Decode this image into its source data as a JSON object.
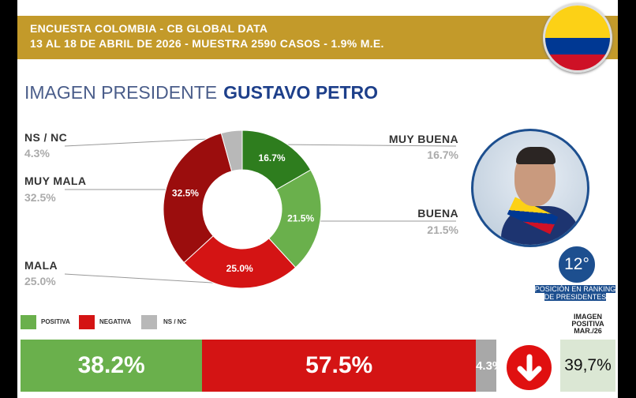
{
  "header": {
    "line1": "ENCUESTA COLOMBIA - CB GLOBAL DATA",
    "line2": "13 AL 18 DE ABRIL DE 2026 - MUESTRA 2590 CASOS - 1.9% M.E."
  },
  "title": {
    "prefix": "IMAGEN PRESIDENTE",
    "name": "GUSTAVO PETRO"
  },
  "chart_data": {
    "type": "pie",
    "donut": true,
    "slices": [
      {
        "label": "MUY BUENA",
        "value": 16.7,
        "value_label": "16.7%",
        "color": "#2e7d1e"
      },
      {
        "label": "BUENA",
        "value": 21.5,
        "value_label": "21.5%",
        "color": "#6ab04c"
      },
      {
        "label": "MALA",
        "value": 25.0,
        "value_label": "25.0%",
        "color": "#d41414"
      },
      {
        "label": "MUY MALA",
        "value": 32.5,
        "value_label": "32.5%",
        "color": "#9b0d0d"
      },
      {
        "label": "NS / NC",
        "value": 4.3,
        "value_label": "4.3%",
        "color": "#b8b8b8"
      }
    ]
  },
  "labels": {
    "ns": {
      "label": "NS / NC",
      "value": "4.3%"
    },
    "muy_mala": {
      "label": "MUY MALA",
      "value": "32.5%"
    },
    "mala": {
      "label": "MALA",
      "value": "25.0%"
    },
    "muy_buena": {
      "label": "MUY BUENA",
      "value": "16.7%"
    },
    "buena": {
      "label": "BUENA",
      "value": "21.5%"
    }
  },
  "ranking": {
    "position": "12°",
    "label1": "POSICIÓN EN RANKING",
    "label2": "DE PRESIDENTES"
  },
  "legend": {
    "positiva": "POSITIVA",
    "negativa": "NEGATIVA",
    "nsnc": "NS / NC"
  },
  "summary": {
    "positiva": "38.2%",
    "negativa": "57.5%",
    "nsnc": "4.3%",
    "positiva_value": 38.2,
    "negativa_value": 57.5,
    "nsnc_value": 4.3
  },
  "trend": {
    "icon": "arrow-down-icon",
    "label1": "IMAGEN",
    "label2": "POSITIVA",
    "label3": "MAR./26",
    "previous": "39,7%"
  }
}
